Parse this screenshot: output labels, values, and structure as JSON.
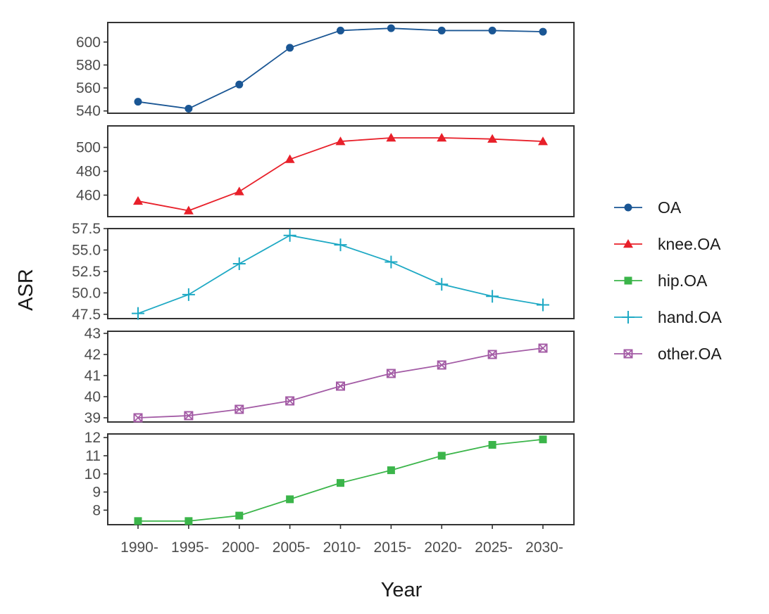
{
  "chart_data": {
    "type": "line",
    "facet": "stacked-panels",
    "ylabel": "ASR",
    "xlabel": "Year",
    "x": [
      1990,
      1995,
      2000,
      2005,
      2010,
      2015,
      2020,
      2025,
      2030
    ],
    "x_tick_labels": [
      "1990-",
      "1995-",
      "2000-",
      "2005-",
      "2010-",
      "2015-",
      "2020-",
      "2025-",
      "2030-"
    ],
    "legend_position": "right",
    "grid": false,
    "panels": [
      {
        "series": "OA",
        "ylim": [
          538,
          617
        ],
        "y_ticks": [
          540,
          560,
          580,
          600
        ],
        "y_tick_labels": [
          "540",
          "560",
          "580",
          "600"
        ],
        "values": [
          548,
          542,
          563,
          595,
          610,
          612,
          610,
          610,
          609
        ]
      },
      {
        "series": "knee.OA",
        "ylim": [
          442,
          518
        ],
        "y_ticks": [
          460,
          480,
          500
        ],
        "y_tick_labels": [
          "460",
          "480",
          "500"
        ],
        "values": [
          455,
          447,
          463,
          490,
          505,
          508,
          508,
          507,
          505
        ]
      },
      {
        "series": "hand.OA",
        "ylim": [
          47.0,
          57.5
        ],
        "y_ticks": [
          47.5,
          50.0,
          52.5,
          55.0,
          57.5
        ],
        "y_tick_labels": [
          "47.5",
          "50.0",
          "52.5",
          "55.0",
          "57.5"
        ],
        "values": [
          47.6,
          49.8,
          53.4,
          56.7,
          55.6,
          53.6,
          51.0,
          49.6,
          48.6
        ]
      },
      {
        "series": "other.OA",
        "ylim": [
          38.8,
          43.1
        ],
        "y_ticks": [
          39,
          40,
          41,
          42,
          43
        ],
        "y_tick_labels": [
          "39",
          "40",
          "41",
          "42",
          "43"
        ],
        "values": [
          39.0,
          39.1,
          39.4,
          39.8,
          40.5,
          41.1,
          41.5,
          42.0,
          42.3
        ]
      },
      {
        "series": "hip.OA",
        "ylim": [
          7.2,
          12.2
        ],
        "y_ticks": [
          8,
          9,
          10,
          11,
          12
        ],
        "y_tick_labels": [
          "8",
          "9",
          "10",
          "11",
          "12"
        ],
        "values": [
          7.4,
          7.4,
          7.7,
          8.6,
          9.5,
          10.2,
          11.0,
          11.6,
          11.9
        ]
      }
    ],
    "legend": [
      {
        "name": "OA",
        "color": "#1a5694",
        "marker": "circle"
      },
      {
        "name": "knee.OA",
        "color": "#e8202a",
        "marker": "triangle"
      },
      {
        "name": "hip.OA",
        "color": "#3bb54a",
        "marker": "square"
      },
      {
        "name": "hand.OA",
        "color": "#1ea9c4",
        "marker": "plus"
      },
      {
        "name": "other.OA",
        "color": "#a35ba5",
        "marker": "square-cross"
      }
    ]
  }
}
